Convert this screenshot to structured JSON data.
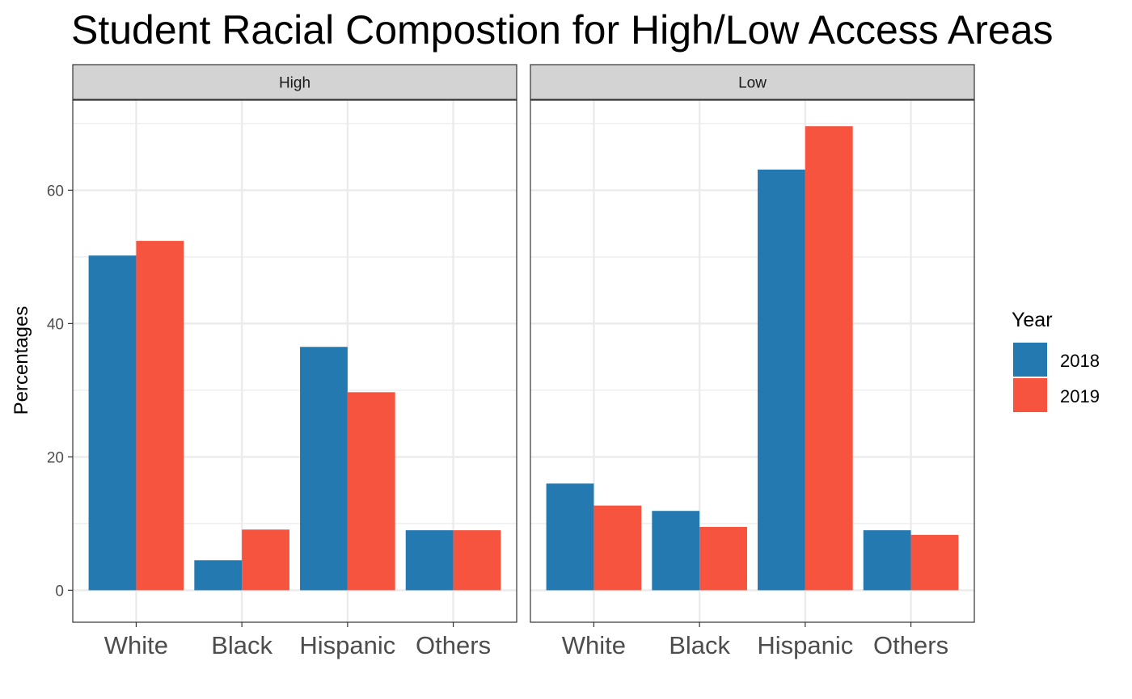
{
  "colors": {
    "2018": "#2479b0",
    "2019": "#f6543e",
    "strip_bg": "#d3d3d3",
    "grid": "#ebebeb",
    "border": "#333333"
  },
  "chart_data": {
    "type": "bar",
    "title": "Student Racial Compostion for High/Low Access Areas",
    "ylabel": "Percentages",
    "xlabel": "",
    "ylim": [
      -4.8,
      73.5
    ],
    "yticks": [
      0,
      20,
      40,
      60
    ],
    "categories": [
      "White",
      "Black",
      "Hispanic",
      "Others"
    ],
    "legend": {
      "title": "Year",
      "position": "right"
    },
    "grid": true,
    "panels": [
      {
        "name": "High",
        "series": [
          {
            "name": "2018",
            "values": [
              50.2,
              4.5,
              36.5,
              9.0
            ]
          },
          {
            "name": "2019",
            "values": [
              52.4,
              9.1,
              29.7,
              9.0
            ]
          }
        ]
      },
      {
        "name": "Low",
        "series": [
          {
            "name": "2018",
            "values": [
              16.0,
              11.9,
              63.1,
              9.0
            ]
          },
          {
            "name": "2019",
            "values": [
              12.7,
              9.5,
              69.6,
              8.3
            ]
          }
        ]
      }
    ]
  }
}
